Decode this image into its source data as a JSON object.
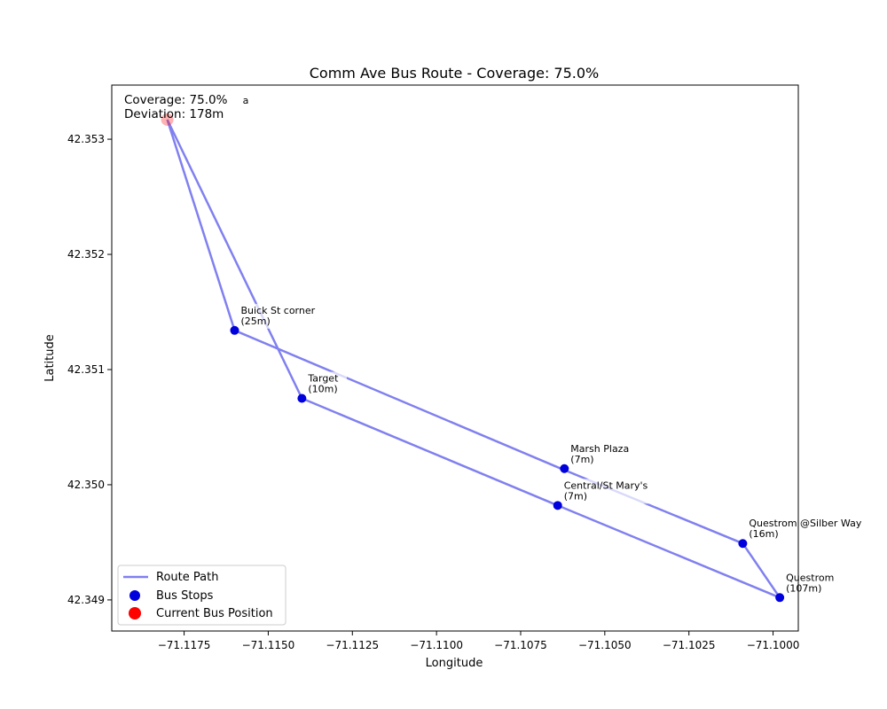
{
  "chart_data": {
    "type": "line",
    "title": "Comm Ave Bus Route - Coverage: 75.0%",
    "xlabel": "Longitude",
    "ylabel": "Latitude",
    "xlim": [
      -71.11965,
      -71.09925
    ],
    "ylim": [
      42.34873,
      42.35347
    ],
    "xticks": [
      -71.1175,
      -71.115,
      -71.1125,
      -71.11,
      -71.1075,
      -71.105,
      -71.1025,
      -71.1
    ],
    "xtick_labels": [
      "−71.1175",
      "−71.1150",
      "−71.1125",
      "−71.1100",
      "−71.1075",
      "−71.1050",
      "−71.1025",
      "−71.1000"
    ],
    "yticks": [
      42.349,
      42.35,
      42.351,
      42.352,
      42.353
    ],
    "ytick_labels": [
      "42.349",
      "42.350",
      "42.351",
      "42.352",
      "42.353"
    ],
    "grid": false,
    "legend_position": "lower-left",
    "route_path": {
      "name": "Route Path",
      "color": "#8080f0",
      "lon": [
        -71.118,
        -71.116,
        -71.1063,
        -71.1009,
        -71.0998,
        -71.1064,
        -71.114,
        -71.118
      ],
      "lat": [
        42.35317,
        42.35134,
        42.35014,
        42.34949,
        42.34902,
        42.34982,
        42.35075,
        42.35317
      ]
    },
    "bus_stops": {
      "name": "Bus Stops",
      "color": "#0000dd",
      "points": [
        {
          "name": "Buick St corner",
          "distance": "(25m)",
          "lon": -71.116,
          "lat": 42.35134
        },
        {
          "name": "Target",
          "distance": "(10m)",
          "lon": -71.114,
          "lat": 42.35075
        },
        {
          "name": "Marsh Plaza",
          "distance": "(7m)",
          "lon": -71.1062,
          "lat": 42.35014
        },
        {
          "name": "Central/St Mary's",
          "distance": "(7m)",
          "lon": -71.1064,
          "lat": 42.34982
        },
        {
          "name": "Questrom @Silber Way",
          "distance": "(16m)",
          "lon": -71.1009,
          "lat": 42.34949
        },
        {
          "name": "Questrom",
          "distance": "(107m)",
          "lon": -71.0998,
          "lat": 42.34902
        }
      ]
    },
    "current_position": {
      "name": "Current Bus Position",
      "color": "#ff0000",
      "lon": -71.118,
      "lat": 42.35317,
      "partial_label": "a"
    },
    "info_box": {
      "coverage_text": "Coverage: 75.0%",
      "deviation_text": "Deviation: 178m"
    }
  }
}
